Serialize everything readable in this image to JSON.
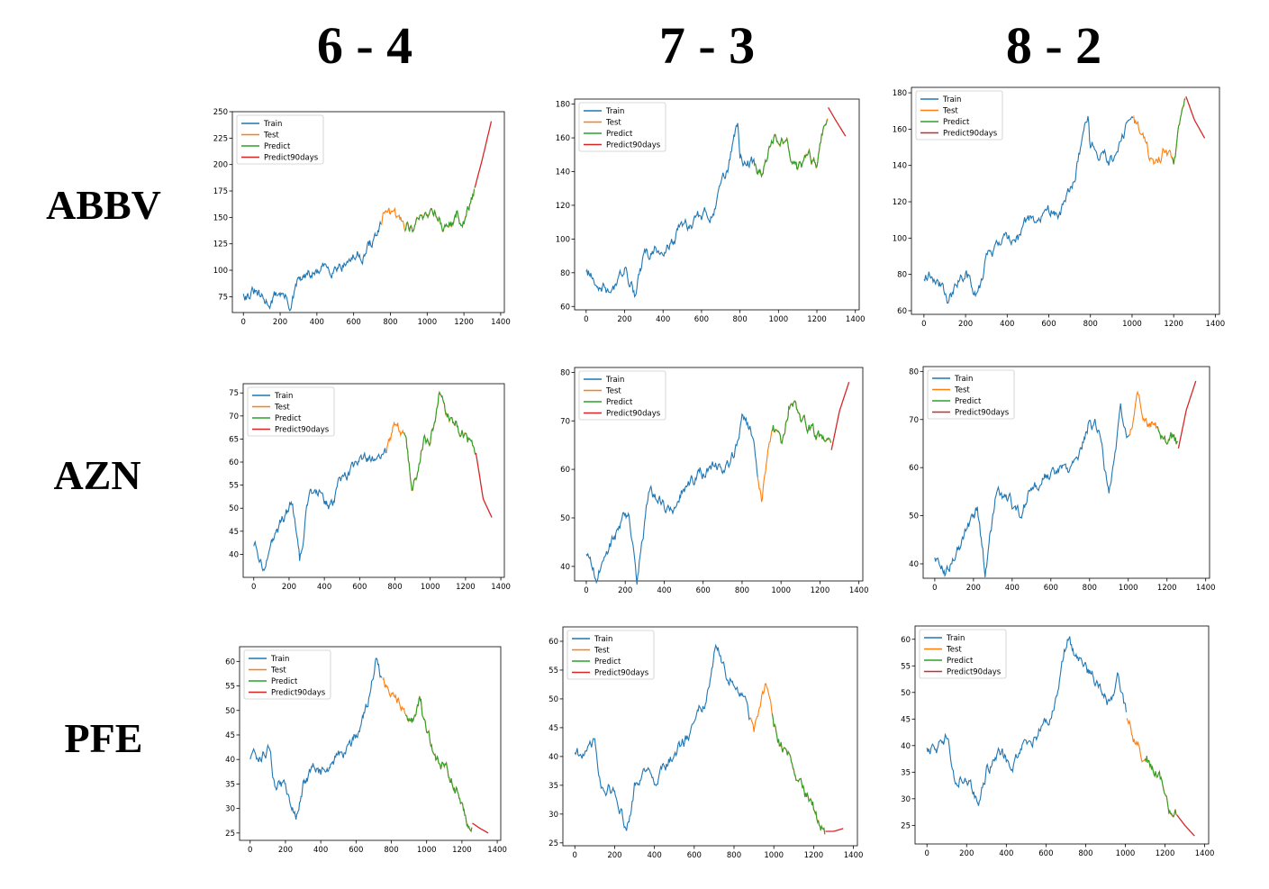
{
  "column_headers": [
    "6 - 4",
    "7 - 3",
    "8 - 2"
  ],
  "row_headers": [
    "ABBV",
    "AZN",
    "PFE"
  ],
  "colors": {
    "train": "#1f77b4",
    "test": "#ff7f0e",
    "predict": "#2ca02c",
    "predict90": "#d62728"
  },
  "legend_labels": [
    "Train",
    "Test",
    "Predict",
    "Predict90days"
  ],
  "chart_data": [
    {
      "type": "line",
      "title": "",
      "ticker": "ABBV",
      "split": "6 - 4",
      "legend": "top-left",
      "xlim": [
        -60,
        1420
      ],
      "ylim": [
        60,
        250
      ],
      "xticks": [
        0,
        200,
        400,
        600,
        800,
        1000,
        1200,
        1400
      ],
      "yticks": [
        75,
        100,
        125,
        150,
        175,
        200,
        225,
        250
      ],
      "train_end": 750,
      "test_end": 1259,
      "predict_start": 880,
      "predict_end": 1259,
      "horizon_end": 1349,
      "keypoints": [
        [
          0,
          80
        ],
        [
          60,
          78
        ],
        [
          120,
          67
        ],
        [
          200,
          80
        ],
        [
          260,
          67
        ],
        [
          300,
          88
        ],
        [
          380,
          95
        ],
        [
          440,
          100
        ],
        [
          520,
          108
        ],
        [
          600,
          112
        ],
        [
          660,
          118
        ],
        [
          720,
          132
        ],
        [
          750,
          140
        ],
        [
          790,
          162
        ],
        [
          800,
          150
        ],
        [
          860,
          145
        ],
        [
          920,
          142
        ],
        [
          980,
          152
        ],
        [
          1040,
          160
        ],
        [
          1100,
          140
        ],
        [
          1160,
          150
        ],
        [
          1200,
          145
        ],
        [
          1259,
          178
        ],
        [
          1300,
          205
        ],
        [
          1349,
          241
        ]
      ]
    },
    {
      "type": "line",
      "title": "",
      "ticker": "ABBV",
      "split": "7 - 3",
      "legend": "top-left",
      "xlim": [
        -60,
        1420
      ],
      "ylim": [
        58,
        183
      ],
      "xticks": [
        0,
        200,
        400,
        600,
        800,
        1000,
        1200,
        1400
      ],
      "yticks": [
        60,
        80,
        100,
        120,
        140,
        160,
        180
      ],
      "train_end": 880,
      "test_end": 1259,
      "predict_start": 880,
      "predict_end": 1259,
      "horizon_end": 1349,
      "keypoints": [
        [
          0,
          80
        ],
        [
          60,
          78
        ],
        [
          120,
          67
        ],
        [
          200,
          80
        ],
        [
          260,
          67
        ],
        [
          300,
          88
        ],
        [
          380,
          95
        ],
        [
          440,
          100
        ],
        [
          520,
          108
        ],
        [
          600,
          112
        ],
        [
          660,
          118
        ],
        [
          720,
          132
        ],
        [
          790,
          168
        ],
        [
          800,
          150
        ],
        [
          860,
          145
        ],
        [
          920,
          142
        ],
        [
          980,
          162
        ],
        [
          1040,
          158
        ],
        [
          1100,
          138
        ],
        [
          1160,
          150
        ],
        [
          1200,
          142
        ],
        [
          1259,
          178
        ],
        [
          1300,
          170
        ],
        [
          1349,
          161
        ]
      ]
    },
    {
      "type": "line",
      "title": "",
      "ticker": "ABBV",
      "split": "8 - 2",
      "legend": "top-left",
      "xlim": [
        -60,
        1420
      ],
      "ylim": [
        58,
        183
      ],
      "xticks": [
        0,
        200,
        400,
        600,
        800,
        1000,
        1200,
        1400
      ],
      "yticks": [
        60,
        80,
        100,
        120,
        140,
        160,
        180
      ],
      "ytick_labels": [
        "60",
        "80",
        "100",
        "120",
        "140",
        "160",
        "180"
      ],
      "train_end": 1007,
      "test_end": 1259,
      "predict_start": 1190,
      "predict_end": 1259,
      "horizon_end": 1349,
      "keypoints": [
        [
          0,
          80
        ],
        [
          60,
          78
        ],
        [
          120,
          67
        ],
        [
          200,
          80
        ],
        [
          260,
          67
        ],
        [
          300,
          88
        ],
        [
          380,
          95
        ],
        [
          440,
          100
        ],
        [
          520,
          108
        ],
        [
          600,
          112
        ],
        [
          660,
          118
        ],
        [
          720,
          132
        ],
        [
          790,
          168
        ],
        [
          800,
          150
        ],
        [
          860,
          145
        ],
        [
          920,
          142
        ],
        [
          980,
          162
        ],
        [
          1040,
          158
        ],
        [
          1100,
          138
        ],
        [
          1160,
          150
        ],
        [
          1200,
          142
        ],
        [
          1259,
          178
        ],
        [
          1300,
          165
        ],
        [
          1349,
          155
        ]
      ]
    },
    {
      "type": "line",
      "title": "",
      "ticker": "AZN",
      "split": "6 - 4",
      "legend": "top-left",
      "xlim": [
        -60,
        1420
      ],
      "ylim": [
        35,
        77
      ],
      "xticks": [
        0,
        200,
        400,
        600,
        800,
        1000,
        1200,
        1400
      ],
      "yticks": [
        40,
        45,
        50,
        55,
        60,
        65,
        70,
        75
      ],
      "train_end": 750,
      "test_end": 1259,
      "predict_start": 850,
      "predict_end": 1259,
      "horizon_end": 1349,
      "keypoints": [
        [
          0,
          42
        ],
        [
          50,
          38
        ],
        [
          100,
          42
        ],
        [
          160,
          47
        ],
        [
          220,
          51
        ],
        [
          260,
          38
        ],
        [
          320,
          55
        ],
        [
          380,
          53
        ],
        [
          440,
          50
        ],
        [
          500,
          56
        ],
        [
          560,
          58
        ],
        [
          620,
          60
        ],
        [
          700,
          60
        ],
        [
          750,
          61
        ],
        [
          790,
          68
        ],
        [
          860,
          65
        ],
        [
          900,
          54
        ],
        [
          960,
          65
        ],
        [
          1000,
          65
        ],
        [
          1050,
          75
        ],
        [
          1100,
          70
        ],
        [
          1160,
          68
        ],
        [
          1200,
          66
        ],
        [
          1259,
          62
        ],
        [
          1300,
          52
        ],
        [
          1349,
          48
        ]
      ]
    },
    {
      "type": "line",
      "title": "",
      "ticker": "AZN",
      "split": "7 - 3",
      "legend": "top-left",
      "xlim": [
        -60,
        1420
      ],
      "ylim": [
        37,
        81
      ],
      "xticks": [
        0,
        200,
        400,
        600,
        800,
        1000,
        1200,
        1400
      ],
      "yticks": [
        40,
        50,
        60,
        70,
        80
      ],
      "train_end": 880,
      "test_end": 1259,
      "predict_start": 950,
      "predict_end": 1259,
      "horizon_end": 1349,
      "keypoints": [
        [
          0,
          42
        ],
        [
          50,
          38
        ],
        [
          100,
          42
        ],
        [
          160,
          47
        ],
        [
          220,
          51
        ],
        [
          260,
          38
        ],
        [
          320,
          55
        ],
        [
          380,
          53
        ],
        [
          440,
          50
        ],
        [
          500,
          56
        ],
        [
          560,
          58
        ],
        [
          620,
          60
        ],
        [
          700,
          60
        ],
        [
          760,
          63
        ],
        [
          800,
          70
        ],
        [
          860,
          67
        ],
        [
          900,
          54
        ],
        [
          960,
          70
        ],
        [
          1000,
          65
        ],
        [
          1050,
          75
        ],
        [
          1100,
          70
        ],
        [
          1160,
          68
        ],
        [
          1200,
          66
        ],
        [
          1259,
          64
        ],
        [
          1300,
          72
        ],
        [
          1349,
          78
        ]
      ]
    },
    {
      "type": "line",
      "title": "",
      "ticker": "AZN",
      "split": "8 - 2",
      "legend": "top-left",
      "xlim": [
        -60,
        1420
      ],
      "ylim": [
        37,
        81
      ],
      "xticks": [
        0,
        200,
        400,
        600,
        800,
        1000,
        1200,
        1400
      ],
      "yticks": [
        40,
        50,
        60,
        70,
        80
      ],
      "train_end": 1007,
      "test_end": 1259,
      "predict_start": 1150,
      "predict_end": 1259,
      "horizon_end": 1349,
      "keypoints": [
        [
          0,
          42
        ],
        [
          50,
          38
        ],
        [
          100,
          42
        ],
        [
          160,
          47
        ],
        [
          220,
          51
        ],
        [
          260,
          38
        ],
        [
          320,
          55
        ],
        [
          380,
          53
        ],
        [
          440,
          50
        ],
        [
          500,
          56
        ],
        [
          560,
          58
        ],
        [
          620,
          60
        ],
        [
          700,
          60
        ],
        [
          760,
          63
        ],
        [
          800,
          70
        ],
        [
          860,
          67
        ],
        [
          900,
          54
        ],
        [
          960,
          70
        ],
        [
          1000,
          65
        ],
        [
          1050,
          75
        ],
        [
          1100,
          70
        ],
        [
          1160,
          68
        ],
        [
          1200,
          66
        ],
        [
          1259,
          64
        ],
        [
          1300,
          72
        ],
        [
          1349,
          78
        ]
      ]
    },
    {
      "type": "line",
      "title": "",
      "ticker": "PFE",
      "split": "6 - 4",
      "legend": "top-left",
      "xlim": [
        -60,
        1420
      ],
      "ylim": [
        23.5,
        63
      ],
      "xticks": [
        0,
        200,
        400,
        600,
        800,
        1000,
        1200,
        1400
      ],
      "yticks": [
        25,
        30,
        35,
        40,
        45,
        50,
        55,
        60
      ],
      "train_end": 750,
      "test_end": 1259,
      "predict_start": 880,
      "predict_end": 1259,
      "horizon_end": 1349,
      "keypoints": [
        [
          0,
          40
        ],
        [
          60,
          40
        ],
        [
          100,
          42
        ],
        [
          140,
          34
        ],
        [
          200,
          35
        ],
        [
          260,
          28
        ],
        [
          300,
          35
        ],
        [
          360,
          38
        ],
        [
          420,
          37
        ],
        [
          480,
          40
        ],
        [
          540,
          42
        ],
        [
          600,
          45
        ],
        [
          660,
          50
        ],
        [
          710,
          60
        ],
        [
          750,
          55
        ],
        [
          800,
          54
        ],
        [
          860,
          52
        ],
        [
          920,
          48
        ],
        [
          960,
          53
        ],
        [
          1000,
          45
        ],
        [
          1060,
          40
        ],
        [
          1120,
          37
        ],
        [
          1180,
          33
        ],
        [
          1230,
          28
        ],
        [
          1259,
          27
        ],
        [
          1300,
          26
        ],
        [
          1349,
          25
        ]
      ]
    },
    {
      "type": "line",
      "title": "",
      "ticker": "PFE",
      "split": "7 - 3",
      "legend": "top-left",
      "xlim": [
        -60,
        1420
      ],
      "ylim": [
        24.5,
        62.5
      ],
      "xticks": [
        0,
        200,
        400,
        600,
        800,
        1000,
        1200,
        1400
      ],
      "yticks": [
        25,
        30,
        35,
        40,
        45,
        50,
        55,
        60
      ],
      "train_end": 880,
      "test_end": 1259,
      "predict_start": 990,
      "predict_end": 1259,
      "horizon_end": 1349,
      "keypoints": [
        [
          0,
          40
        ],
        [
          60,
          40
        ],
        [
          100,
          42
        ],
        [
          140,
          34
        ],
        [
          200,
          35
        ],
        [
          260,
          28
        ],
        [
          300,
          35
        ],
        [
          360,
          38
        ],
        [
          420,
          37
        ],
        [
          480,
          40
        ],
        [
          540,
          42
        ],
        [
          600,
          45
        ],
        [
          660,
          50
        ],
        [
          710,
          60
        ],
        [
          760,
          55
        ],
        [
          800,
          54
        ],
        [
          860,
          48
        ],
        [
          900,
          44
        ],
        [
          960,
          53
        ],
        [
          1000,
          45
        ],
        [
          1060,
          40
        ],
        [
          1120,
          37
        ],
        [
          1180,
          33
        ],
        [
          1230,
          28
        ],
        [
          1259,
          27
        ],
        [
          1300,
          27
        ],
        [
          1349,
          27.5
        ]
      ]
    },
    {
      "type": "line",
      "title": "",
      "ticker": "PFE",
      "split": "8 - 2",
      "legend": "top-left",
      "xlim": [
        -60,
        1420
      ],
      "ylim": [
        21.5,
        62.5
      ],
      "xticks": [
        0,
        200,
        400,
        600,
        800,
        1000,
        1200,
        1400
      ],
      "yticks": [
        25,
        30,
        35,
        40,
        45,
        50,
        55,
        60
      ],
      "train_end": 1007,
      "test_end": 1259,
      "predict_start": 1100,
      "predict_end": 1259,
      "horizon_end": 1349,
      "keypoints": [
        [
          0,
          40
        ],
        [
          60,
          40
        ],
        [
          100,
          42
        ],
        [
          140,
          34
        ],
        [
          200,
          35
        ],
        [
          260,
          28
        ],
        [
          300,
          35
        ],
        [
          360,
          38
        ],
        [
          420,
          37
        ],
        [
          480,
          40
        ],
        [
          540,
          42
        ],
        [
          600,
          45
        ],
        [
          660,
          50
        ],
        [
          710,
          60
        ],
        [
          760,
          55
        ],
        [
          800,
          54
        ],
        [
          860,
          52
        ],
        [
          920,
          48
        ],
        [
          960,
          53
        ],
        [
          1007,
          45
        ],
        [
          1060,
          40
        ],
        [
          1120,
          37
        ],
        [
          1180,
          33
        ],
        [
          1230,
          28
        ],
        [
          1259,
          27
        ],
        [
          1300,
          25
        ],
        [
          1349,
          23
        ]
      ]
    }
  ]
}
